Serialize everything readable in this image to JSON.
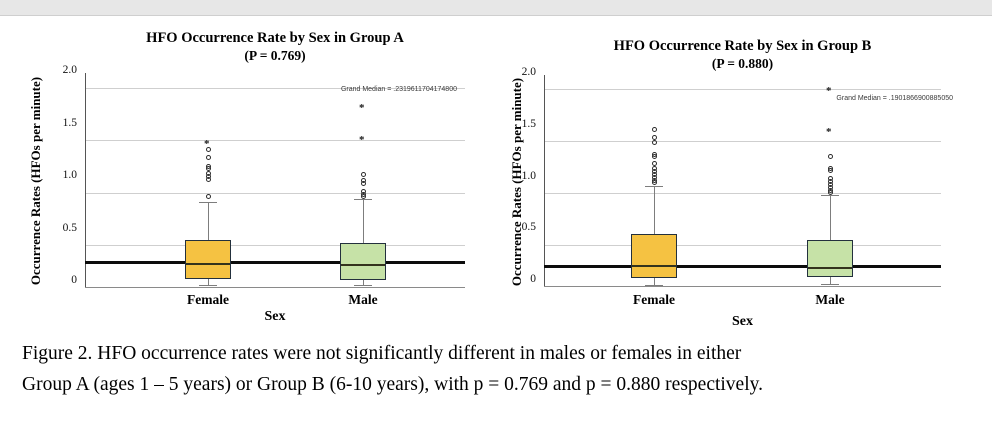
{
  "page": {
    "top_strip_color": "#e7e7e7",
    "background": "#ffffff"
  },
  "caption": {
    "line1": "Figure 2. HFO occurrence rates were not significantly different in males or females in either",
    "line2": "Group A (ages 1 – 5 years) or Group B (6-10 years), with p = 0.769 and p = 0.880 respectively."
  },
  "chart_data": [
    {
      "type": "boxplot",
      "title": "HFO Occurrence Rate by Sex in Group A",
      "subtitle": "(P = 0.769)",
      "xlabel": "Sex",
      "ylabel": "Occurrence Rates (HFOs per minute)",
      "ylim": [
        0,
        2.0
      ],
      "ytick_labels": [
        "2.0",
        "1.5",
        "1.0",
        "0.5",
        "0"
      ],
      "ytick_values": [
        2.0,
        1.5,
        1.0,
        0.5,
        0
      ],
      "gridline_values": [
        1.9,
        1.4,
        0.9,
        0.4
      ],
      "grid": true,
      "legend": "none",
      "grand_median": {
        "value": 0.232,
        "label": "Grand Median = .2319611704174800"
      },
      "categories": [
        "Female",
        "Male"
      ],
      "series": [
        {
          "category": "Female",
          "box_color": "#F5C242",
          "whisker_low": 0.02,
          "q1": 0.08,
          "median": 0.22,
          "q3": 0.45,
          "whisker_high": 0.81,
          "outliers": [
            0.86,
            1.02,
            1.05,
            1.08,
            1.13,
            1.15,
            1.23,
            1.31
          ],
          "extremes": [
            1.38
          ]
        },
        {
          "category": "Male",
          "box_color": "#C6E2A7",
          "whisker_low": 0.02,
          "q1": 0.07,
          "median": 0.21,
          "q3": 0.42,
          "whisker_high": 0.84,
          "outliers": [
            0.86,
            0.88,
            0.91,
            0.99,
            1.01,
            1.07
          ],
          "extremes": [
            1.42,
            1.72
          ]
        }
      ]
    },
    {
      "type": "boxplot",
      "title": "HFO Occurrence Rate by Sex in Group B",
      "subtitle": "(P = 0.880)",
      "xlabel": "Sex",
      "ylabel": "Occurrence Rates (HFOs per minute)",
      "ylim": [
        0,
        2.0
      ],
      "ytick_labels": [
        "2.0",
        "1.5",
        "1.0",
        "0.5",
        "0"
      ],
      "ytick_values": [
        2.0,
        1.5,
        1.0,
        0.5,
        0
      ],
      "gridline_values": [
        1.9,
        1.4,
        0.9,
        0.4
      ],
      "grid": true,
      "legend": "none",
      "grand_median": {
        "value": 0.19,
        "label": "Grand Median = .1901866900885050"
      },
      "categories": [
        "Female",
        "Male"
      ],
      "series": [
        {
          "category": "Female",
          "box_color": "#F5C242",
          "whisker_low": 0.01,
          "q1": 0.08,
          "median": 0.19,
          "q3": 0.5,
          "whisker_high": 0.97,
          "outliers": [
            1.0,
            1.02,
            1.05,
            1.08,
            1.11,
            1.14,
            1.18,
            1.25,
            1.27,
            1.39,
            1.43,
            1.51
          ],
          "extremes": []
        },
        {
          "category": "Male",
          "box_color": "#C6E2A7",
          "whisker_low": 0.02,
          "q1": 0.09,
          "median": 0.17,
          "q3": 0.44,
          "whisker_high": 0.88,
          "outliers": [
            0.9,
            0.92,
            0.95,
            0.98,
            1.01,
            1.04,
            1.12,
            1.14,
            1.25
          ],
          "extremes": [
            1.51,
            1.9
          ]
        }
      ]
    }
  ]
}
